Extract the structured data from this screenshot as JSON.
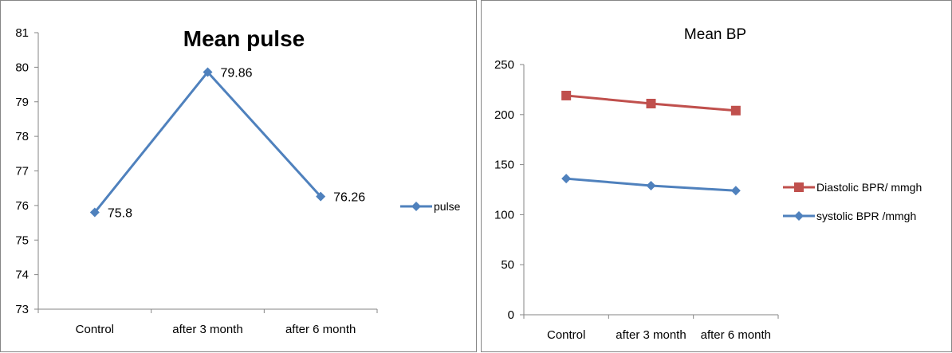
{
  "chart_data": [
    {
      "type": "line",
      "title": "Mean pulse",
      "categories": [
        "Control",
        "after 3 month",
        "after 6 month"
      ],
      "series": [
        {
          "name": "pulse",
          "values": [
            75.8,
            79.86,
            76.26
          ],
          "labels": [
            "75.8",
            "79.86",
            "76.26"
          ],
          "color": "#4F81BD",
          "marker": "diamond"
        }
      ],
      "ylim": [
        73,
        81
      ],
      "yticks": [
        "73",
        "74",
        "75",
        "76",
        "77",
        "78",
        "79",
        "80",
        "81"
      ],
      "grid": false,
      "legend": "right",
      "xlabel": "",
      "ylabel": ""
    },
    {
      "type": "line",
      "title": "Mean BP",
      "categories": [
        "Control",
        "after 3 month",
        "after 6 month"
      ],
      "series": [
        {
          "name": "Diastolic BPR/ mmgh",
          "values": [
            219,
            211,
            204
          ],
          "color": "#C0504D",
          "marker": "square"
        },
        {
          "name": "systolic BPR /mmgh",
          "values": [
            136,
            129,
            124
          ],
          "color": "#4F81BD",
          "marker": "diamond"
        }
      ],
      "ylim": [
        0,
        250
      ],
      "yticks": [
        "0",
        "50",
        "100",
        "150",
        "200",
        "250"
      ],
      "grid": false,
      "legend": "right",
      "xlabel": "",
      "ylabel": ""
    }
  ]
}
